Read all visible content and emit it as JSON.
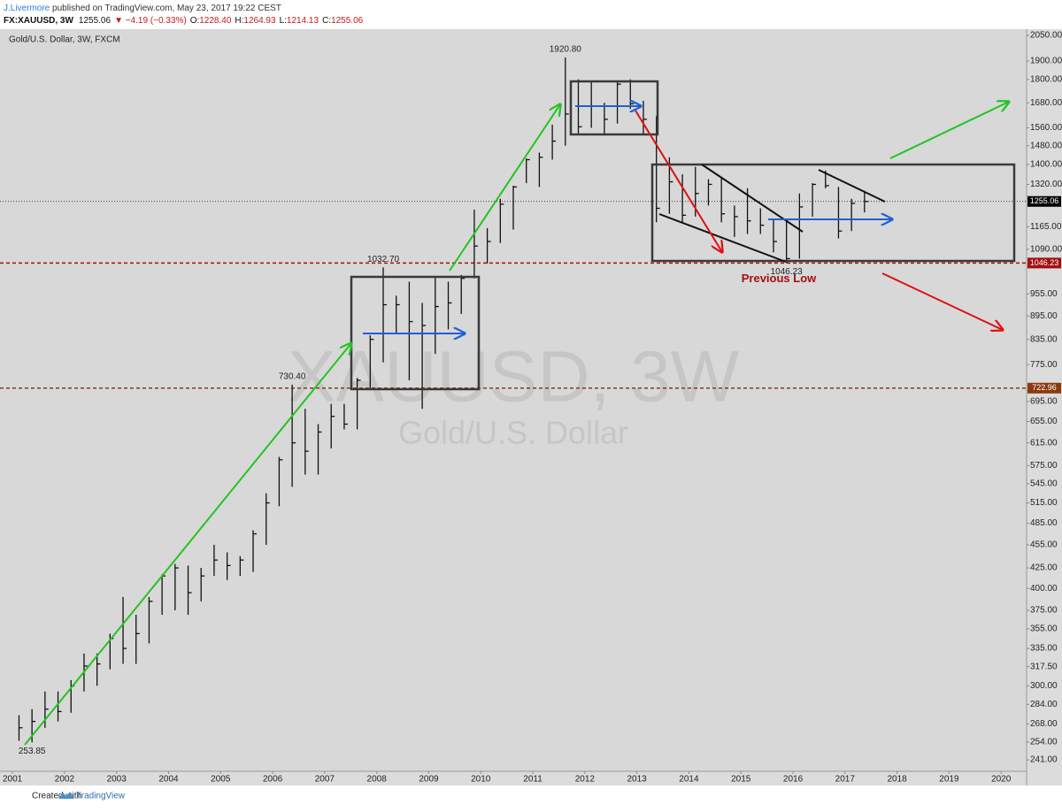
{
  "header": {
    "author": "J.Livermore",
    "published": " published on TradingView.com, May 23, 2017 19:22 CEST",
    "symbol": "FX:XAUUSD, 3W",
    "last": "1255.06",
    "change": "▼ −4.19 (−0.33%)",
    "o_label": "O:",
    "o_value": "1228.40",
    "h_label": "H:",
    "h_value": "1264.93",
    "l_label": "L:",
    "l_value": "1214.13",
    "c_label": "C:",
    "c_value": "1255.06"
  },
  "footer": {
    "text": "Created with",
    "brand": "TradingView"
  },
  "chart_data": {
    "type": "ohlc",
    "legend": "Gold/U.S. Dollar, 3W, FXCM",
    "watermark": "XAUUSD, 3W",
    "watermark_subtitle": "Gold/U.S. Dollar",
    "log_scale": true,
    "grid": false,
    "color": "#111111",
    "xlim": [
      2000.76,
      2020.49
    ],
    "xticks": [
      2001,
      2002,
      2003,
      2004,
      2005,
      2006,
      2007,
      2008,
      2009,
      2010,
      2011,
      2012,
      2013,
      2014,
      2015,
      2016,
      2017,
      2018,
      2019,
      2020
    ],
    "ylim": [
      233,
      2088
    ],
    "yticks": [
      {
        "value": 2050,
        "label": "2050.00"
      },
      {
        "value": 1900,
        "label": "1900.00"
      },
      {
        "value": 1800,
        "label": "1800.00"
      },
      {
        "value": 1680,
        "label": "1680.00"
      },
      {
        "value": 1560,
        "label": "1560.00"
      },
      {
        "value": 1480,
        "label": "1480.00"
      },
      {
        "value": 1400,
        "label": "1400.00"
      },
      {
        "value": 1320,
        "label": "1320.00"
      },
      {
        "value": 1165,
        "label": "1165.00"
      },
      {
        "value": 1090,
        "label": "1090.00"
      },
      {
        "value": 955,
        "label": "955.00"
      },
      {
        "value": 895,
        "label": "895.00"
      },
      {
        "value": 835,
        "label": "835.00"
      },
      {
        "value": 775,
        "label": "775.00"
      },
      {
        "value": 695,
        "label": "695.00"
      },
      {
        "value": 655,
        "label": "655.00"
      },
      {
        "value": 615,
        "label": "615.00"
      },
      {
        "value": 575,
        "label": "575.00"
      },
      {
        "value": 545,
        "label": "545.00"
      },
      {
        "value": 515,
        "label": "515.00"
      },
      {
        "value": 485,
        "label": "485.00"
      },
      {
        "value": 455,
        "label": "455.00"
      },
      {
        "value": 425,
        "label": "425.00"
      },
      {
        "value": 400,
        "label": "400.00"
      },
      {
        "value": 375,
        "label": "375.00"
      },
      {
        "value": 355,
        "label": "355.00"
      },
      {
        "value": 335,
        "label": "335.00"
      },
      {
        "value": 317.5,
        "label": "317.50"
      },
      {
        "value": 300,
        "label": "300.00"
      },
      {
        "value": 284,
        "label": "284.00"
      },
      {
        "value": 268,
        "label": "268.00"
      },
      {
        "value": 254,
        "label": "254.00"
      },
      {
        "value": 241,
        "label": "241.00"
      }
    ],
    "x": [
      2001.125,
      2001.375,
      2001.625,
      2001.875,
      2002.125,
      2002.375,
      2002.625,
      2002.875,
      2003.125,
      2003.375,
      2003.625,
      2003.875,
      2004.125,
      2004.375,
      2004.625,
      2004.875,
      2005.125,
      2005.375,
      2005.625,
      2005.875,
      2006.125,
      2006.375,
      2006.625,
      2006.875,
      2007.125,
      2007.375,
      2007.625,
      2007.875,
      2008.125,
      2008.375,
      2008.625,
      2008.875,
      2009.125,
      2009.375,
      2009.625,
      2009.875,
      2010.125,
      2010.375,
      2010.625,
      2010.875,
      2011.125,
      2011.375,
      2011.625,
      2011.875,
      2012.125,
      2012.375,
      2012.625,
      2012.875,
      2013.125,
      2013.375,
      2013.625,
      2013.875,
      2014.125,
      2014.375,
      2014.625,
      2014.875,
      2015.125,
      2015.375,
      2015.625,
      2015.875,
      2016.125,
      2016.375,
      2016.625,
      2016.875,
      2017.125,
      2017.375
    ],
    "high": [
      275,
      280,
      295,
      295,
      305,
      330,
      330,
      350,
      390,
      370,
      390,
      417,
      430,
      428,
      425,
      455,
      445,
      440,
      475,
      530,
      590,
      730.4,
      680,
      650,
      690,
      690,
      745,
      845,
      1032.7,
      950,
      990,
      930,
      1005,
      990,
      1010,
      1225,
      1160,
      1265,
      1315,
      1425,
      1450,
      1575,
      1920.8,
      1800,
      1790,
      1680,
      1795,
      1800,
      1690,
      1615,
      1430,
      1360,
      1390,
      1340,
      1345,
      1240,
      1305,
      1230,
      1190,
      1190,
      1285,
      1325,
      1375,
      1310,
      1265,
      1295
    ],
    "low": [
      255,
      253.85,
      265,
      270,
      277,
      295,
      300,
      315,
      320,
      320,
      340,
      370,
      375,
      370,
      385,
      415,
      410,
      415,
      420,
      455,
      510,
      540,
      560,
      560,
      605,
      640,
      640,
      720,
      780,
      850,
      740,
      680,
      800,
      860,
      900,
      1000,
      1045,
      1110,
      1155,
      1325,
      1310,
      1420,
      1480,
      1530,
      1560,
      1525,
      1580,
      1650,
      1530,
      1180,
      1210,
      1180,
      1200,
      1240,
      1180,
      1130,
      1140,
      1140,
      1080,
      1046.23,
      1060,
      1200,
      1305,
      1125,
      1150,
      1215
    ],
    "close": [
      265,
      270,
      280,
      278,
      300,
      318,
      320,
      345,
      335,
      350,
      385,
      415,
      425,
      395,
      415,
      435,
      428,
      435,
      470,
      515,
      585,
      615,
      600,
      635,
      665,
      650,
      740,
      835,
      925,
      925,
      880,
      870,
      920,
      930,
      1000,
      1100,
      1115,
      1245,
      1310,
      1420,
      1430,
      1500,
      1625,
      1565,
      1665,
      1600,
      1775,
      1675,
      1600,
      1230,
      1330,
      1205,
      1285,
      1320,
      1210,
      1200,
      1185,
      1170,
      1115,
      1060,
      1235,
      1320,
      1315,
      1150,
      1248,
      1255.06
    ],
    "price_lines": [
      {
        "value": 1255.06,
        "color": "#000000",
        "style": "dotted"
      },
      {
        "value": 1046.23,
        "color": "#a30f0f",
        "style": "dashed"
      },
      {
        "value": 722.96,
        "color": "#8b3a0f",
        "style": "dashed"
      }
    ],
    "annotations": [
      {
        "x": 2001.375,
        "value": 253.85,
        "label": "253.85",
        "placement": "below"
      },
      {
        "x": 2006.375,
        "value": 730.4,
        "label": "730.40",
        "placement": "above"
      },
      {
        "x": 2008.125,
        "value": 1032.7,
        "label": "1032.70",
        "placement": "above"
      },
      {
        "x": 2011.625,
        "value": 1920.8,
        "label": "1920.80",
        "placement": "above"
      },
      {
        "x": 2015.875,
        "value": 1046.23,
        "label": "1046.23",
        "placement": "below"
      }
    ],
    "previous_low_text": "Previous Low"
  }
}
